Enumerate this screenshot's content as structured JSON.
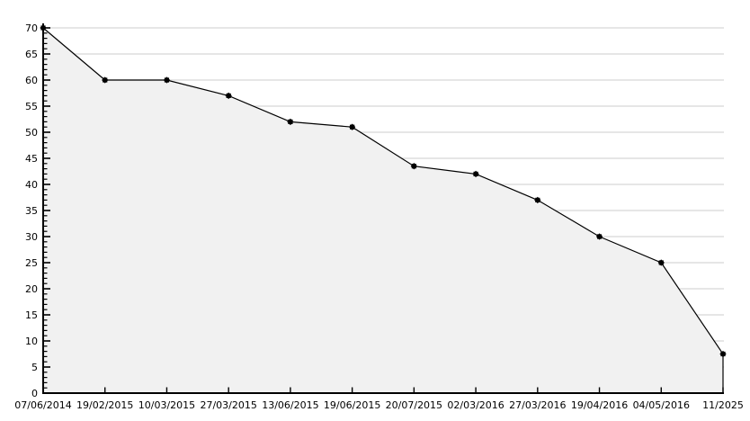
{
  "chart_data": {
    "type": "area",
    "title": "",
    "xlabel": "",
    "ylabel": "",
    "x_labels": [
      "07/06/2014",
      "19/02/2015",
      "10/03/2015",
      "27/03/2015",
      "13/06/2015",
      "19/06/2015",
      "20/07/2015",
      "02/03/2016",
      "27/03/2016",
      "19/04/2016",
      "04/05/2016",
      "11/2025"
    ],
    "values": [
      70,
      60,
      60,
      57,
      52,
      51,
      43.5,
      42,
      37,
      30,
      25,
      7.5
    ],
    "ylim": [
      0,
      70
    ],
    "y_tick_labels": [
      "0",
      "5",
      "10",
      "15",
      "20",
      "25",
      "30",
      "35",
      "40",
      "45",
      "50",
      "55",
      "60",
      "65",
      "70"
    ],
    "y_tick_step": 5,
    "y_minor_tick_step": 1,
    "grid": "horizontal-major",
    "legend": "none",
    "colors": {
      "line": "#000000",
      "marker": "#000000",
      "area_fill": "#f1f1f1",
      "gridline": "#dedede",
      "axis": "#000000",
      "text": "#000000",
      "background": "#ffffff"
    }
  }
}
